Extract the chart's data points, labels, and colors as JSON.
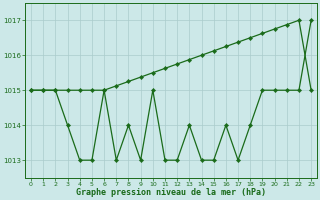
{
  "x": [
    0,
    1,
    2,
    3,
    4,
    5,
    6,
    7,
    8,
    9,
    10,
    11,
    12,
    13,
    14,
    15,
    16,
    17,
    18,
    19,
    20,
    21,
    22,
    23
  ],
  "y_zigzag": [
    1015,
    1015,
    1015,
    1014,
    1013,
    1013,
    1015,
    1013,
    1014,
    1013,
    1015,
    1013,
    1013,
    1014,
    1013,
    1013,
    1014,
    1013,
    1014,
    1015,
    1015,
    1015,
    1015,
    1017
  ],
  "y_upper": [
    1015,
    1015,
    1015,
    1015,
    1015,
    1015,
    1015,
    1015.125,
    1015.25,
    1015.375,
    1015.5,
    1015.625,
    1015.75,
    1015.875,
    1016.0,
    1016.125,
    1016.25,
    1016.375,
    1016.5,
    1016.625,
    1016.75,
    1016.875,
    1017.0,
    1015
  ],
  "line_color": "#1a6b1a",
  "bg_color": "#cce8e8",
  "grid_color": "#aacccc",
  "xlabel": "Graphe pression niveau de la mer (hPa)",
  "ylim": [
    1012.5,
    1017.5
  ],
  "xlim": [
    -0.5,
    23.5
  ],
  "yticks": [
    1013,
    1014,
    1015,
    1016,
    1017
  ],
  "xticks": [
    0,
    1,
    2,
    3,
    4,
    5,
    6,
    7,
    8,
    9,
    10,
    11,
    12,
    13,
    14,
    15,
    16,
    17,
    18,
    19,
    20,
    21,
    22,
    23
  ]
}
